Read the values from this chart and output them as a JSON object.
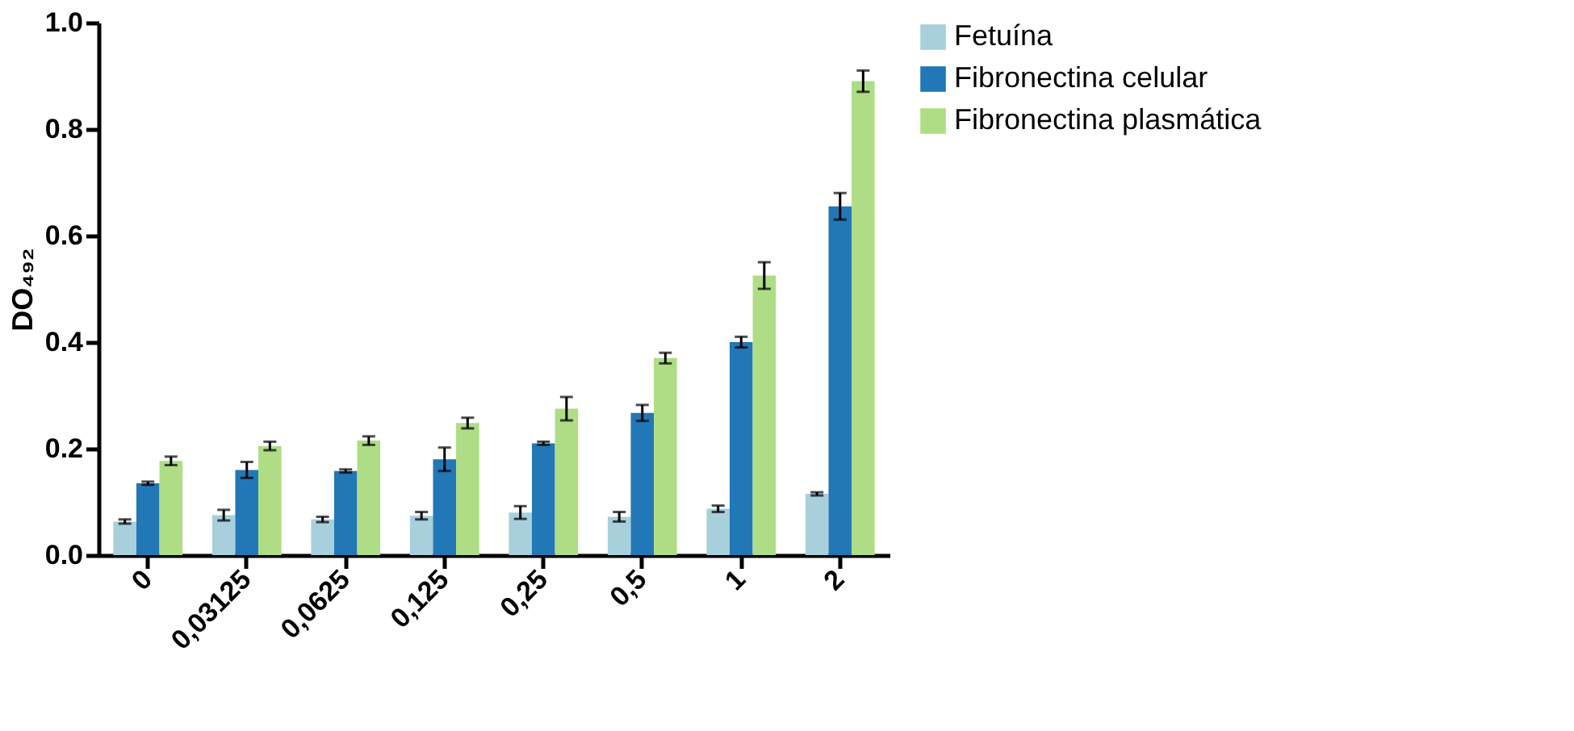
{
  "chart_data": {
    "type": "bar",
    "ylabel": "DO₄₉₂",
    "categories": [
      "0",
      "0,03125",
      "0,0625",
      "0,125",
      "0,25",
      "0,5",
      "1",
      "2"
    ],
    "series": [
      {
        "name": "Fetuína",
        "color": "#a8d0dc",
        "values": [
          0.063,
          0.075,
          0.067,
          0.074,
          0.08,
          0.072,
          0.087,
          0.115
        ],
        "errors": [
          0.004,
          0.01,
          0.005,
          0.007,
          0.012,
          0.009,
          0.006,
          0.003
        ]
      },
      {
        "name": "Fibronectina celular",
        "color": "#2277b6",
        "values": [
          0.135,
          0.16,
          0.158,
          0.18,
          0.21,
          0.267,
          0.4,
          0.655
        ],
        "errors": [
          0.003,
          0.015,
          0.003,
          0.022,
          0.003,
          0.015,
          0.01,
          0.025
        ]
      },
      {
        "name": "Fibronectina plasmática",
        "color": "#aedd86",
        "values": [
          0.177,
          0.205,
          0.215,
          0.248,
          0.275,
          0.37,
          0.525,
          0.89
        ],
        "errors": [
          0.008,
          0.008,
          0.008,
          0.01,
          0.022,
          0.01,
          0.025,
          0.02
        ]
      }
    ],
    "ylim": [
      0,
      1
    ],
    "yticks": [
      {
        "value": 0,
        "label": "0.0"
      },
      0.2,
      0.4,
      0.6,
      0.8,
      {
        "value": 1,
        "label": "1.0"
      }
    ],
    "grid": false,
    "legend": "top right"
  }
}
